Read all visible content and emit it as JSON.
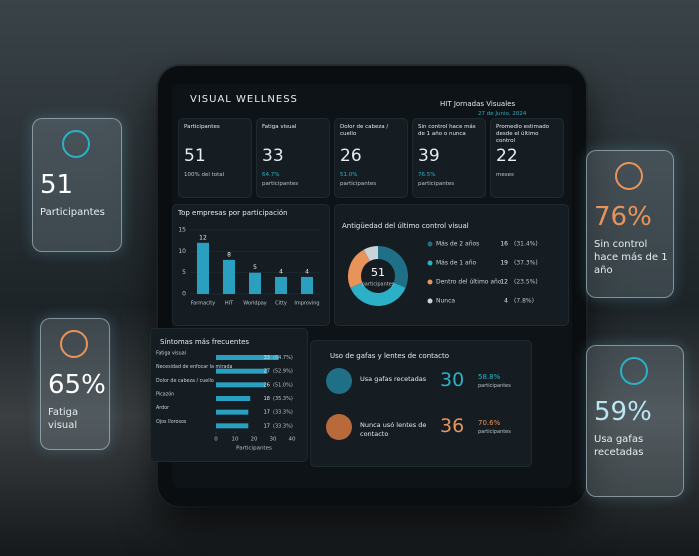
{
  "header": {
    "title": "VISUAL WELLNESS",
    "event": "HIT Jornadas Visuales",
    "date": "27 de Junio, 2024"
  },
  "kpis": [
    {
      "label": "Participantes",
      "value": 51,
      "note": "100% del total"
    },
    {
      "label": "Fatiga visual",
      "value": 33,
      "pct": "64.7%",
      "note": "participantes"
    },
    {
      "label": "Dolor de cabeza / cuello",
      "value": 26,
      "pct": "51.0%",
      "note": "participantes"
    },
    {
      "label": "Sin control hace más de 1 año o nunca",
      "value": 39,
      "pct": "76.5%",
      "note": "participantes"
    },
    {
      "label": "Promedio estimado desde el último control",
      "value": 22,
      "note": "meses"
    }
  ],
  "companies": {
    "type": "bar",
    "title": "Top empresas por participación",
    "categories": [
      "Farmacity",
      "HIT",
      "Worldpay",
      "Citty",
      "Improving"
    ],
    "values": [
      12,
      8,
      5,
      4,
      4
    ],
    "color": "#2a9fc0",
    "ylim": [
      0,
      15
    ],
    "yticks": [
      0,
      5,
      10,
      15
    ]
  },
  "control": {
    "type": "donut",
    "title": "Antigüedad del último control visual",
    "center_value": 51,
    "center_label": "participantes",
    "categories": [
      "Más de 2 años",
      "Más de 1 año",
      "Dentro del último año",
      "Nunca"
    ],
    "values": [
      16,
      19,
      12,
      4
    ],
    "shares": [
      "(31.4%)",
      "(37.3%)",
      "(23.5%)",
      "(7.8%)"
    ],
    "colors": [
      "#1f6f86",
      "#2bb0c8",
      "#e8935a",
      "#c9d3d8"
    ]
  },
  "symptoms": {
    "type": "hbar",
    "title": "Síntomas más frecuentes",
    "categories": [
      "Fatiga visual",
      "Necesidad de enfocar la mirada",
      "Dolor de cabeza / cuello",
      "Picazón",
      "Ardor",
      "Ojos llorosos"
    ],
    "values": [
      33,
      27,
      26,
      18,
      17,
      17
    ],
    "shares": [
      "(64.7%)",
      "(52.9%)",
      "(51.0%)",
      "(35.3%)",
      "(33.3%)",
      "(33.3%)"
    ],
    "color": "#2a9fc0",
    "xlim": [
      0,
      40
    ],
    "xticks": [
      0,
      10,
      20,
      30,
      40
    ],
    "xlabel": "Participantes"
  },
  "glasses": {
    "title": "Uso de gafas y lentes de contacto",
    "rows": [
      {
        "label": "Usa gafas recetadas",
        "value": 30,
        "pct": "58.8%",
        "note": "participantes"
      },
      {
        "label": "Nunca usó lentes de contacto",
        "value": 36,
        "pct": "70.6%",
        "note": "participantes"
      }
    ]
  },
  "floating": [
    {
      "value": "51",
      "label": "Participantes"
    },
    {
      "value": "65%",
      "label": "Fatiga visual"
    },
    {
      "value": "76%",
      "label": "Sin control hace más de 1 año"
    },
    {
      "value": "59%",
      "label": "Usa gafas recetadas"
    }
  ]
}
